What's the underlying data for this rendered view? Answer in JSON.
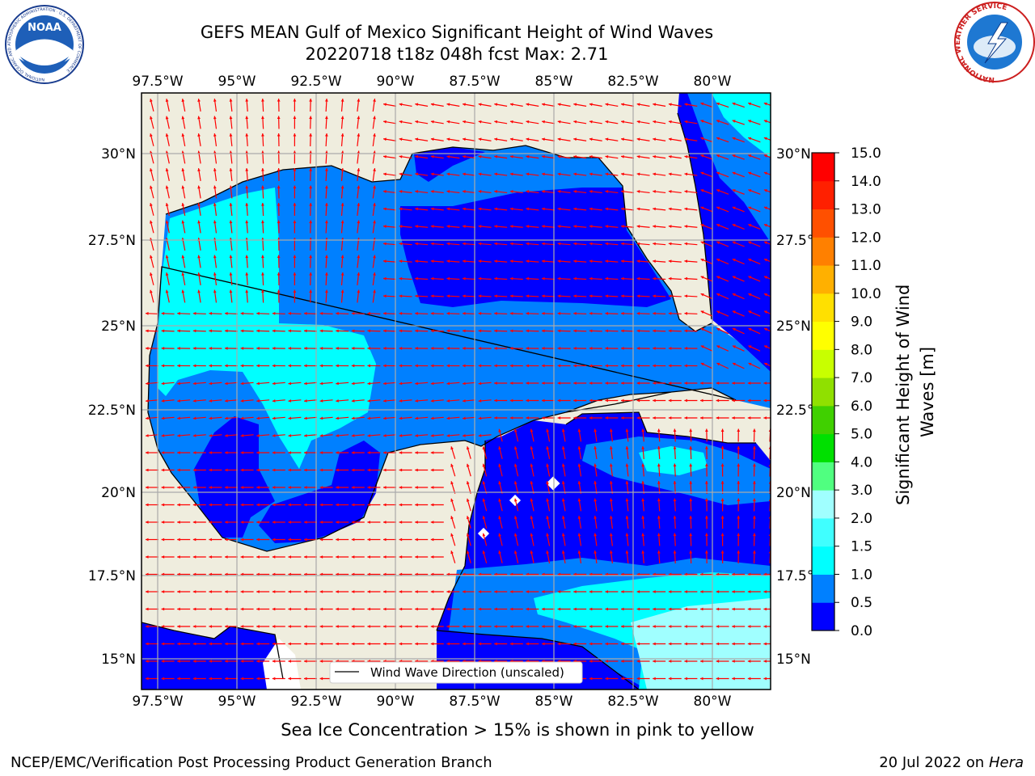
{
  "header": {
    "title_line1": "GEFS MEAN Gulf of Mexico Significant Height of Wind Waves",
    "title_line2": "20220718 t18z 048h fcst   Max: 2.71"
  },
  "map": {
    "lon_labels": [
      "97.5°W",
      "95°W",
      "92.5°W",
      "90°W",
      "87.5°W",
      "85°W",
      "82.5°W",
      "80°W"
    ],
    "lat_labels": [
      "30°N",
      "27.5°N",
      "25°N",
      "22.5°N",
      "20°N",
      "17.5°N",
      "15°N"
    ],
    "legend_label": "Wind Wave Direction (unscaled)",
    "colors": {
      "land": "#efedde",
      "ocean_low": "#0000ff",
      "ocean_mid": "#0080ff",
      "ocean_high": "#00ffff",
      "arrows": "#ff0000"
    }
  },
  "colorbar": {
    "label": "Significant Height of Wind Waves [m]",
    "ticks": [
      "0.0",
      "0.5",
      "1.0",
      "1.5",
      "2.0",
      "3.0",
      "4.0",
      "5.0",
      "6.0",
      "7.0",
      "8.0",
      "9.0",
      "10.0",
      "11.0",
      "12.0",
      "13.0",
      "14.0",
      "15.0"
    ],
    "colors": [
      "#0000ff",
      "#0080ff",
      "#00ffff",
      "#40ffff",
      "#a0ffff",
      "#50ff80",
      "#00e000",
      "#40d000",
      "#90e000",
      "#c8ff00",
      "#ffff00",
      "#ffe000",
      "#ffb000",
      "#ff8000",
      "#ff5000",
      "#ff2000",
      "#ff0000"
    ]
  },
  "subnote": "Sea Ice Concentration > 15% is shown in pink to yellow",
  "footer": {
    "left": "NCEP/EMC/Verification Post Processing Product Generation Branch",
    "right_date": "20 Jul 2022 on ",
    "right_host": "Hera"
  },
  "logos": {
    "noaa_text": "NOAA",
    "noaa_ring": "NATIONAL OCEANIC AND ATMOSPHERIC ADMINISTRATION · U.S. DEPARTMENT OF COMMERCE",
    "nws_ring": "NATIONAL WEATHER SERVICE"
  }
}
